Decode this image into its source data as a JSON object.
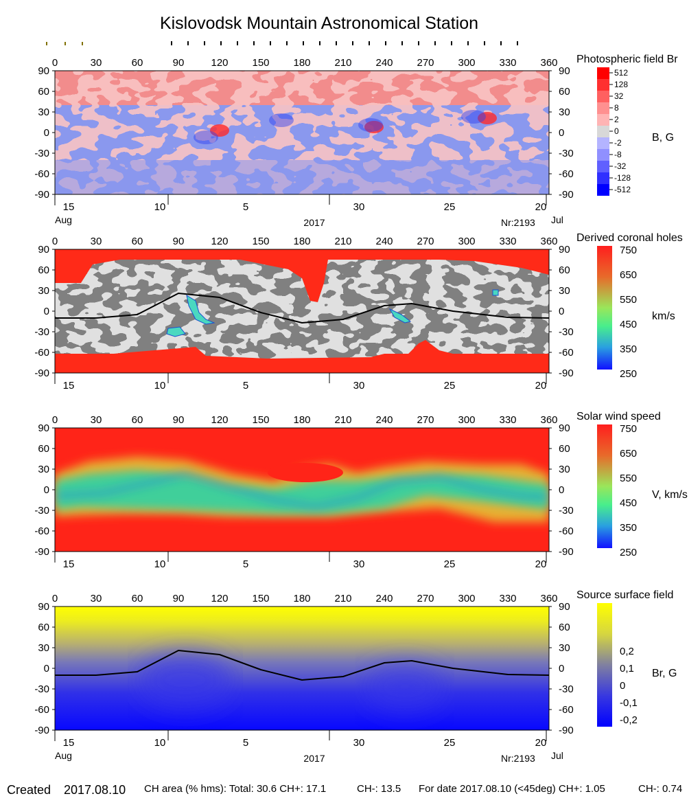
{
  "title": "Kislovodsk Mountain Astronomical Station",
  "footer": {
    "created_label": "Created",
    "created_date": "2017.08.10",
    "ch_area": "CH area (% hms): Total: 30.6 CH+: 17.1",
    "ch_minus": "CH-: 13.5",
    "for_date": "For date 2017.08.10 (<45deg) CH+: 1.05",
    "for_date_ch_minus": "CH-: 0.74"
  },
  "chart_data": [
    {
      "type": "heatmap",
      "title": "Photospheric field Br",
      "colorbar_label": "B, G",
      "colorbar_ticks": [
        "512",
        "128",
        "32",
        "8",
        "2",
        "0",
        "-2",
        "-8",
        "-32",
        "-128",
        "-512"
      ],
      "x_ticks": [
        0,
        30,
        60,
        90,
        120,
        150,
        180,
        210,
        240,
        270,
        300,
        330,
        360
      ],
      "y_ticks": [
        90,
        60,
        30,
        0,
        -30,
        -60,
        -90
      ],
      "xlim": [
        0,
        360
      ],
      "ylim": [
        -90,
        90
      ],
      "date_ticks": [
        "15",
        "10",
        "5",
        "30",
        "25",
        "20"
      ],
      "month_left": "Aug",
      "month_right": "Jul",
      "year": "2017",
      "rotation": "Nr:2193",
      "colors": {
        "positive": "#f28c8c",
        "negative": "#8a98ee",
        "strong_positive": "#ff2a2a",
        "strong_negative": "#2a3df0"
      }
    },
    {
      "type": "heatmap",
      "title": "Derived coronal holes",
      "colorbar_label": "km/s",
      "colorbar_ticks": [
        "750",
        "650",
        "550",
        "450",
        "350",
        "250"
      ],
      "x_ticks": [
        0,
        30,
        60,
        90,
        120,
        150,
        180,
        210,
        240,
        270,
        300,
        330,
        360
      ],
      "y_ticks": [
        90,
        60,
        30,
        0,
        -30,
        -60,
        -90
      ],
      "xlim": [
        0,
        360
      ],
      "ylim": [
        -90,
        90
      ],
      "date_ticks": [
        "15",
        "10",
        "5",
        "30",
        "25",
        "20"
      ],
      "neutral_line": [
        [
          0,
          -10
        ],
        [
          30,
          -10
        ],
        [
          60,
          -5
        ],
        [
          90,
          26
        ],
        [
          120,
          20
        ],
        [
          150,
          -2
        ],
        [
          180,
          -17
        ],
        [
          210,
          -12
        ],
        [
          240,
          8
        ],
        [
          260,
          11
        ],
        [
          290,
          0
        ],
        [
          330,
          -9
        ],
        [
          360,
          -10
        ]
      ],
      "colors": {
        "hole": "#ff2a18",
        "closed_dark": "#808080",
        "closed_light": "#c0c0c0"
      }
    },
    {
      "type": "heatmap",
      "title": "Solar wind speed",
      "colorbar_label": "V, km/s",
      "colorbar_ticks": [
        "750",
        "650",
        "550",
        "450",
        "350",
        "250"
      ],
      "x_ticks": [
        0,
        30,
        60,
        90,
        120,
        150,
        180,
        210,
        240,
        270,
        300,
        330,
        360
      ],
      "y_ticks": [
        90,
        60,
        30,
        0,
        -30,
        -60,
        -90
      ],
      "xlim": [
        0,
        360
      ],
      "ylim": [
        -90,
        90
      ],
      "date_ticks": [
        "15",
        "10",
        "5",
        "30",
        "25",
        "20"
      ],
      "colors": {
        "fast": "#ff2418",
        "slow": "#3fcf9a",
        "slowest": "#2080e0"
      }
    },
    {
      "type": "heatmap",
      "title": "Source surface field",
      "colorbar_label": "Br, G",
      "colorbar_ticks": [
        "0,2",
        "0,1",
        "0",
        "-0,1",
        "-0,2"
      ],
      "x_ticks": [
        0,
        30,
        60,
        90,
        120,
        150,
        180,
        210,
        240,
        270,
        300,
        330,
        360
      ],
      "y_ticks": [
        90,
        60,
        30,
        0,
        -30,
        -60,
        -90
      ],
      "xlim": [
        0,
        360
      ],
      "ylim": [
        -90,
        90
      ],
      "date_ticks": [
        "15",
        "10",
        "5",
        "30",
        "25",
        "20"
      ],
      "month_left": "Aug",
      "month_right": "Jul",
      "year": "2017",
      "rotation": "Nr:2193",
      "neutral_line": [
        [
          0,
          -10
        ],
        [
          30,
          -10
        ],
        [
          60,
          -5
        ],
        [
          90,
          26
        ],
        [
          120,
          20
        ],
        [
          150,
          -2
        ],
        [
          180,
          -17
        ],
        [
          210,
          -12
        ],
        [
          240,
          8
        ],
        [
          260,
          11
        ],
        [
          290,
          0
        ],
        [
          330,
          -9
        ],
        [
          360,
          -10
        ]
      ],
      "colors": {
        "positive": "#ffff00",
        "neutral": "#7878b8",
        "negative": "#1010ff"
      }
    }
  ]
}
